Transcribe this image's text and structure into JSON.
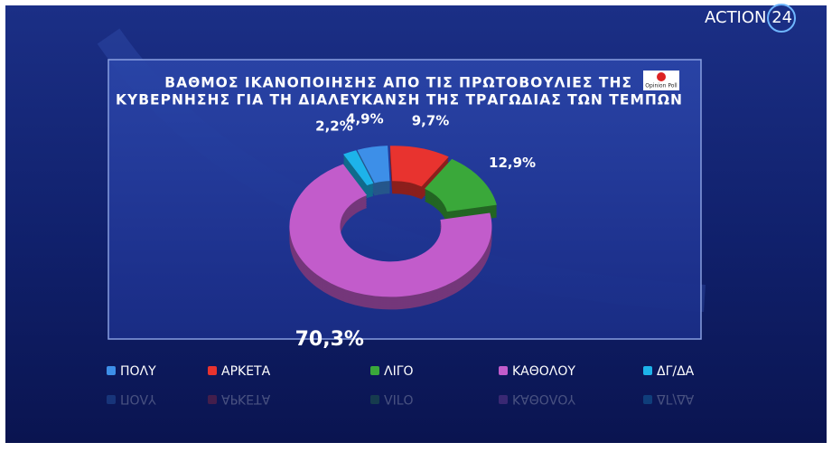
{
  "channel": "ACTION 24",
  "pollster": "Opinion Poll",
  "chart_data": {
    "type": "donut",
    "title": [
      "ΒΑΘΜΟΣ ΙΚΑΝΟΠΟΙΗΣΗΣ ΑΠΟ ΤΙΣ ΠΡΩΤΟΒΟΥΛΙΕΣ ΤΗΣ",
      "ΚΥΒΕΡΝΗΣΗΣ ΓΙΑ ΤΗ ΔΙΑΛΕΥΚΑΝΣΗ ΤΗΣ ΤΡΑΓΩΔΙΑΣ ΤΩΝ ΤΕΜΠΩΝ"
    ],
    "categories": [
      "ΠΟΛΥ",
      "ΑΡΚΕΤΑ",
      "ΛΙΓΟ",
      "ΚΑΘΟΛΟΥ",
      "ΔΓ/ΔΑ"
    ],
    "values": [
      4.9,
      9.7,
      12.9,
      70.3,
      2.2
    ],
    "value_labels": [
      "4,9%",
      "9,7%",
      "12,9%",
      "70,3%",
      "2,2%"
    ],
    "colors": [
      "#3d8fe8",
      "#e8332f",
      "#3aa83a",
      "#c25ccb",
      "#1db3ea"
    ]
  }
}
